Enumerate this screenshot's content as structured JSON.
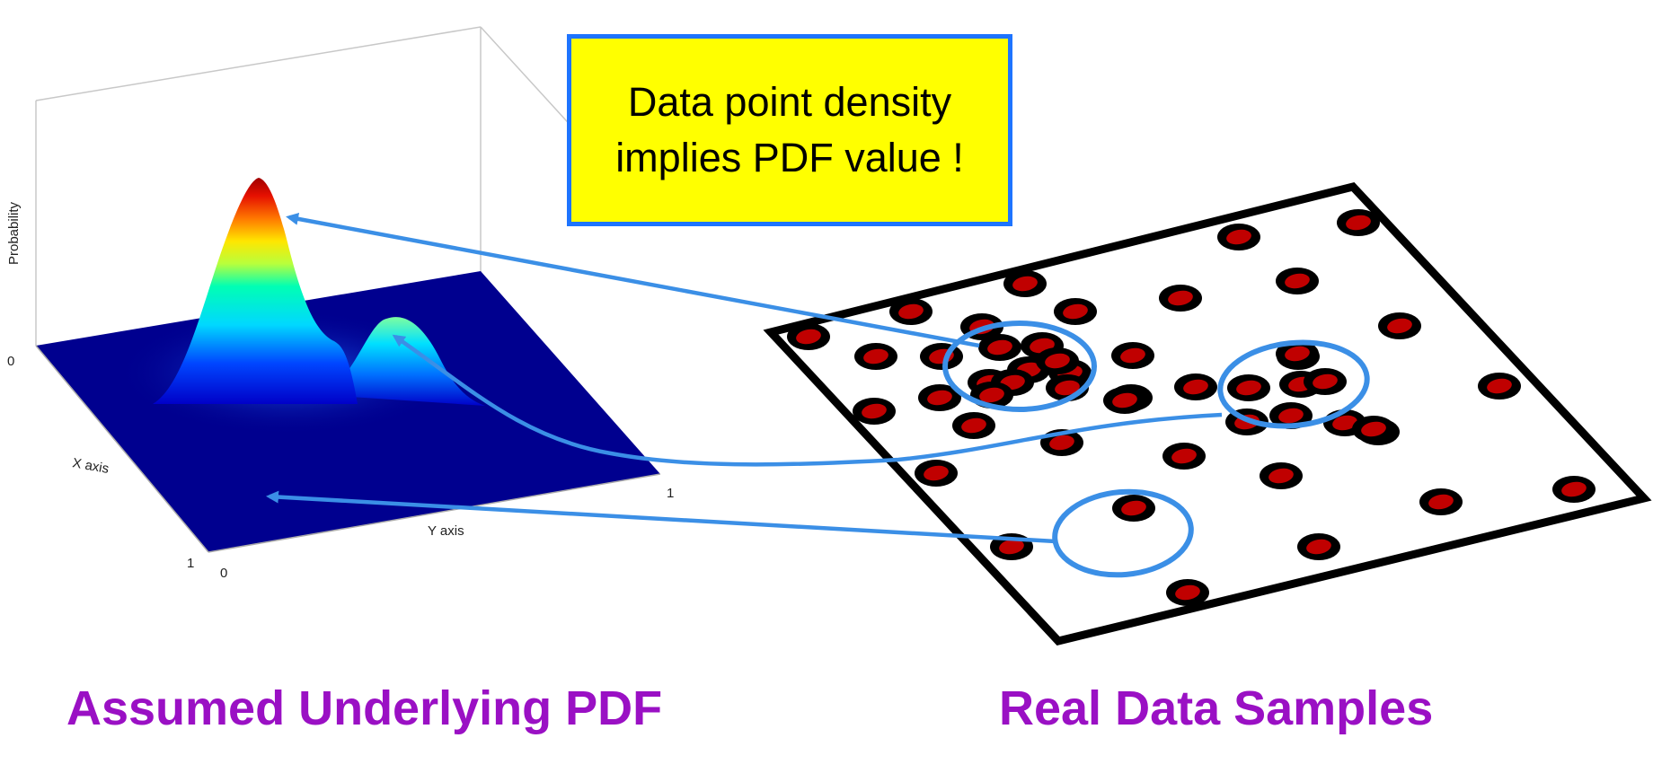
{
  "callout": {
    "line1": "Data point density",
    "line2": "implies PDF value !"
  },
  "captions": {
    "left": "Assumed Underlying PDF",
    "right": "Real Data Samples"
  },
  "plot3d": {
    "z_label": "Probability",
    "x_label": "X axis",
    "y_label": "Y axis",
    "tick_z0": "0",
    "tick_x1": "1",
    "tick_x0": "0",
    "tick_y0": "0",
    "tick_y1": "1"
  },
  "colors": {
    "callout_fill": "#ffff00",
    "callout_border": "#1e74ff",
    "caption": "#9a10c4",
    "arrow": "#3b8fe6",
    "sample_dot_fill": "#c00000",
    "sample_dot_ring": "#000000",
    "pdf_base": "#00008f"
  }
}
